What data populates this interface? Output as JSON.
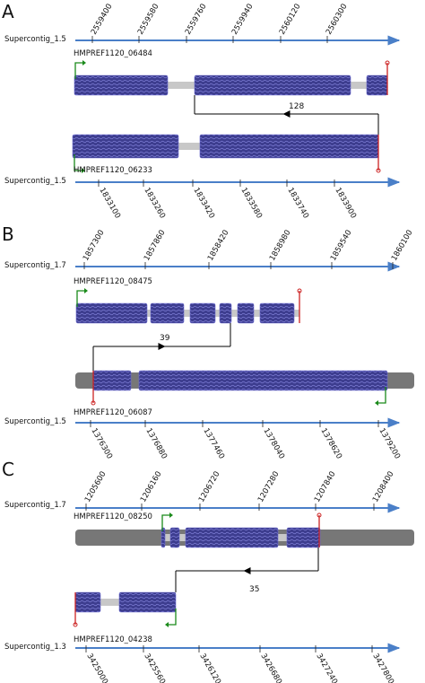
{
  "colors": {
    "axis": "#4a7fc8",
    "intron": "#c8c8c8",
    "dark_gene": "#777777",
    "exon": "#3d3d8f",
    "exon_line": "#8080d8",
    "start": "#1a8a1a",
    "stop": "#cc2222",
    "link": "#000000"
  },
  "panels": [
    {
      "letter": "A",
      "top_axis": {
        "label": "Supercontig_1.5",
        "ticks": [
          "2559400",
          "2559580",
          "2559760",
          "2559940",
          "2560120",
          "2560300"
        ]
      },
      "top_gene": {
        "label": "HMPREF1120_06484"
      },
      "bottom_gene": {
        "label": "HMPREF1120_06233"
      },
      "link_count": "128",
      "bottom_axis": {
        "label": "Supercontig_1.5",
        "ticks": [
          "1833100",
          "1833260",
          "1833420",
          "1833580",
          "1833740",
          "1833900"
        ]
      }
    },
    {
      "letter": "B",
      "top_axis": {
        "label": "Supercontig_1.7",
        "ticks": [
          "1857300",
          "1857860",
          "1858420",
          "1858980",
          "1859540",
          "1860100"
        ]
      },
      "top_gene": {
        "label": "HMPREF1120_08475"
      },
      "bottom_gene": {
        "label": "HMPREF1120_06087"
      },
      "link_count": "39",
      "bottom_axis": {
        "label": "Supercontig_1.5",
        "ticks": [
          "1376300",
          "1376880",
          "1377460",
          "1378040",
          "1378620",
          "1379200"
        ]
      }
    },
    {
      "letter": "C",
      "top_axis": {
        "label": "Supercontig_1.7",
        "ticks": [
          "1205600",
          "1206160",
          "1206720",
          "1207280",
          "1207840",
          "1208400"
        ]
      },
      "top_gene": {
        "label": "HMPREF1120_08250"
      },
      "bottom_gene": {
        "label": "HMPREF1120_04238"
      },
      "link_count": "35",
      "bottom_axis": {
        "label": "Supercontig_1.3",
        "ticks": [
          "3425000",
          "3425560",
          "3426120",
          "3426680",
          "3427240",
          "3427800"
        ]
      }
    }
  ]
}
